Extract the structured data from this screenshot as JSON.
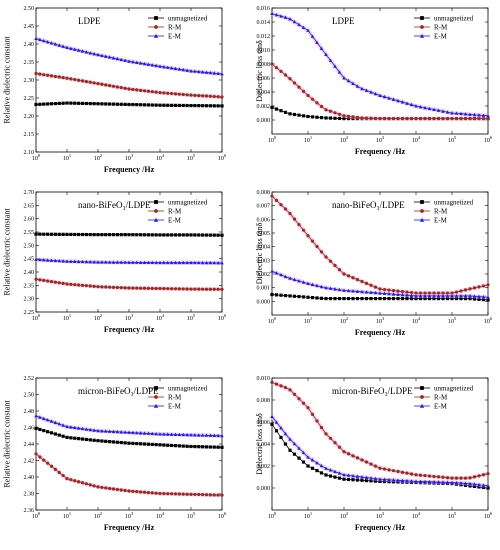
{
  "colors": {
    "unmagnetized": "#000000",
    "R-M": "#a0281e",
    "E-M": "#1a1aff",
    "halo": "#f3b6d8"
  },
  "chart_data": [
    {
      "type": "line",
      "title": "LDPE",
      "xlabel": "Frequency /Hz",
      "ylabel": "Relative dielectric constant",
      "xscale": "log",
      "xlim": [
        1,
        1000000
      ],
      "ylim": [
        2.1,
        2.5
      ],
      "yticks": [
        "2.10",
        "2.15",
        "2.20",
        "2.25",
        "2.30",
        "2.35",
        "2.40",
        "2.45",
        "2.50"
      ],
      "xticks": [
        "10^0",
        "10^1",
        "10^2",
        "10^3",
        "10^4",
        "10^5",
        "10^6"
      ],
      "legend_position": "top-right",
      "x": [
        1,
        10,
        100,
        1000,
        10000,
        100000,
        1000000
      ],
      "series": [
        {
          "name": "unmagnetized",
          "marker": "square",
          "values": [
            2.232,
            2.236,
            2.234,
            2.232,
            2.23,
            2.229,
            2.228
          ]
        },
        {
          "name": "R-M",
          "marker": "circle",
          "values": [
            2.318,
            2.305,
            2.29,
            2.275,
            2.265,
            2.258,
            2.253
          ]
        },
        {
          "name": "E-M",
          "marker": "triangle",
          "values": [
            2.415,
            2.39,
            2.37,
            2.352,
            2.338,
            2.325,
            2.317
          ]
        }
      ]
    },
    {
      "type": "line",
      "title": "LDPE",
      "xlabel": "Frequency /Hz",
      "ylabel": "Dielectric loss tanδ",
      "xscale": "log",
      "xlim": [
        1,
        1000000
      ],
      "ylim": [
        -0.002,
        0.016
      ],
      "yticks": [
        "0.000",
        "0.002",
        "0.004",
        "0.006",
        "0.008",
        "0.010",
        "0.012",
        "0.014",
        "0.016"
      ],
      "xticks": [
        "10^0",
        "10^1",
        "10^2",
        "10^3",
        "10^4",
        "10^5",
        "10^6"
      ],
      "legend_position": "top-right",
      "x": [
        1,
        3,
        10,
        30,
        100,
        300,
        1000,
        10000,
        100000,
        1000000
      ],
      "series": [
        {
          "name": "unmagnetized",
          "marker": "square",
          "values": [
            0.0018,
            0.0009,
            0.0005,
            0.0003,
            0.0002,
            0.0002,
            0.0002,
            0.0002,
            0.0002,
            0.0002
          ]
        },
        {
          "name": "R-M",
          "marker": "circle",
          "values": [
            0.008,
            0.006,
            0.0035,
            0.0015,
            0.0006,
            0.0003,
            0.0002,
            0.0002,
            0.0002,
            0.0002
          ]
        },
        {
          "name": "E-M",
          "marker": "triangle",
          "values": [
            0.0152,
            0.0145,
            0.0128,
            0.0095,
            0.006,
            0.0045,
            0.0035,
            0.002,
            0.001,
            0.0006
          ]
        }
      ]
    },
    {
      "type": "line",
      "title": "nano-BiFeO₃/LDPE",
      "xlabel": "Frequency /Hz",
      "ylabel": "Relative dielectric constant",
      "xscale": "log",
      "xlim": [
        1,
        1000000
      ],
      "ylim": [
        2.25,
        2.7
      ],
      "yticks": [
        "2.25",
        "2.30",
        "2.35",
        "2.40",
        "2.45",
        "2.50",
        "2.55",
        "2.60",
        "2.65",
        "2.70"
      ],
      "xticks": [
        "10^0",
        "10^1",
        "10^2",
        "10^3",
        "10^4",
        "10^5",
        "10^6"
      ],
      "legend_position": "top-right",
      "x": [
        1,
        10,
        100,
        1000,
        10000,
        100000,
        1000000
      ],
      "series": [
        {
          "name": "unmagnetized",
          "marker": "square",
          "values": [
            2.542,
            2.541,
            2.54,
            2.54,
            2.539,
            2.539,
            2.538
          ]
        },
        {
          "name": "R-M",
          "marker": "circle",
          "values": [
            2.373,
            2.355,
            2.345,
            2.34,
            2.338,
            2.336,
            2.335
          ]
        },
        {
          "name": "E-M",
          "marker": "triangle",
          "values": [
            2.447,
            2.44,
            2.437,
            2.436,
            2.435,
            2.435,
            2.434
          ]
        }
      ]
    },
    {
      "type": "line",
      "title": "nano-BiFeO₃/LDPE",
      "xlabel": "Frequency /Hz",
      "ylabel": "Dielectric loss tanδ",
      "xscale": "log",
      "xlim": [
        1,
        1000000
      ],
      "ylim": [
        -0.001,
        0.008
      ],
      "yticks": [
        "0.000",
        "0.001",
        "0.002",
        "0.003",
        "0.004",
        "0.005",
        "0.006",
        "0.007",
        "0.008"
      ],
      "xticks": [
        "10^0",
        "10^1",
        "10^2",
        "10^3",
        "10^4",
        "10^5",
        "10^6"
      ],
      "legend_position": "top-right",
      "x": [
        1,
        3,
        10,
        30,
        100,
        1000,
        10000,
        100000,
        300000,
        1000000
      ],
      "series": [
        {
          "name": "unmagnetized",
          "marker": "square",
          "values": [
            0.0005,
            0.0004,
            0.0003,
            0.0002,
            0.0002,
            0.0002,
            0.0002,
            0.0002,
            0.0002,
            0.0001
          ]
        },
        {
          "name": "R-M",
          "marker": "circle",
          "values": [
            0.0077,
            0.0065,
            0.0048,
            0.0033,
            0.002,
            0.0009,
            0.0006,
            0.0006,
            0.0009,
            0.0012
          ]
        },
        {
          "name": "E-M",
          "marker": "triangle",
          "values": [
            0.0022,
            0.0017,
            0.0013,
            0.001,
            0.0008,
            0.0006,
            0.0004,
            0.0004,
            0.0004,
            0.0003
          ]
        }
      ]
    },
    {
      "type": "line",
      "title": "micron-BiFeO₃/LDPE",
      "xlabel": "Frequency /Hz",
      "ylabel": "Relative dielectric constant",
      "xscale": "log",
      "xlim": [
        1,
        1000000
      ],
      "ylim": [
        2.36,
        2.52
      ],
      "yticks": [
        "2.36",
        "2.38",
        "2.40",
        "2.42",
        "2.44",
        "2.46",
        "2.48",
        "2.50",
        "2.52"
      ],
      "xticks": [
        "10^0",
        "10^1",
        "10^2",
        "10^3",
        "10^4",
        "10^5",
        "10^6"
      ],
      "legend_position": "top-right",
      "x": [
        1,
        10,
        100,
        1000,
        10000,
        100000,
        1000000
      ],
      "series": [
        {
          "name": "unmagnetized",
          "marker": "square",
          "values": [
            2.459,
            2.448,
            2.444,
            2.441,
            2.439,
            2.437,
            2.436
          ]
        },
        {
          "name": "R-M",
          "marker": "circle",
          "values": [
            2.428,
            2.398,
            2.388,
            2.383,
            2.38,
            2.379,
            2.378
          ]
        },
        {
          "name": "E-M",
          "marker": "triangle",
          "values": [
            2.474,
            2.461,
            2.456,
            2.454,
            2.452,
            2.451,
            2.45
          ]
        }
      ]
    },
    {
      "type": "line",
      "title": "micron-BiFeO₃/LDPE",
      "xlabel": "Frequency /Hz",
      "ylabel": "Dielectric loss tanδ",
      "xscale": "log",
      "xlim": [
        1,
        1000000
      ],
      "ylim": [
        -0.002,
        0.01
      ],
      "yticks": [
        "0.000",
        "0.002",
        "0.004",
        "0.006",
        "0.008",
        "0.010"
      ],
      "xticks": [
        "10^0",
        "10^1",
        "10^2",
        "10^3",
        "10^4",
        "10^5",
        "10^6"
      ],
      "legend_position": "top-right",
      "x": [
        1,
        3,
        10,
        30,
        100,
        1000,
        10000,
        100000,
        300000,
        1000000
      ],
      "series": [
        {
          "name": "unmagnetized",
          "marker": "square",
          "values": [
            0.0058,
            0.0035,
            0.002,
            0.0012,
            0.0008,
            0.0006,
            0.0005,
            0.0004,
            0.0002,
            0.0
          ]
        },
        {
          "name": "R-M",
          "marker": "circle",
          "values": [
            0.0096,
            0.009,
            0.0073,
            0.005,
            0.0033,
            0.0018,
            0.0012,
            0.0009,
            0.0009,
            0.0013
          ]
        },
        {
          "name": "E-M",
          "marker": "triangle",
          "values": [
            0.0065,
            0.0045,
            0.0028,
            0.0018,
            0.0012,
            0.0008,
            0.0006,
            0.0005,
            0.0004,
            0.0002
          ]
        }
      ]
    }
  ]
}
